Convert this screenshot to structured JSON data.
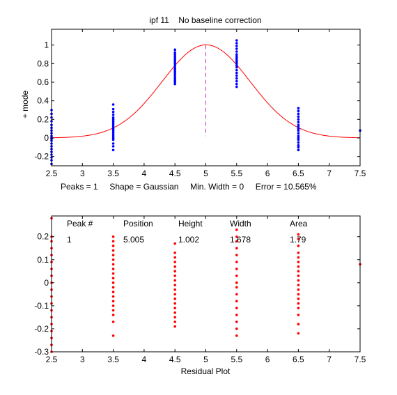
{
  "chart_data": [
    {
      "type": "scatter",
      "title": "ipf 11    No baseline correction",
      "ylabel": "+ mode",
      "xlabel": "",
      "xlim": [
        2.5,
        7.5
      ],
      "ylim": [
        -0.3,
        1.17
      ],
      "xticks": [
        "2.5",
        "3",
        "3.5",
        "4",
        "4.5",
        "5",
        "5.5",
        "6",
        "6.5",
        "7",
        "7.5"
      ],
      "yticks": [
        "-0.2",
        "0",
        "0.2",
        "0.4",
        "0.6",
        "0.8",
        "1"
      ],
      "grid": false,
      "stats_line": "Peaks = 1     Shape = Gaussian     Min. Width = 0     Error = 10.565%",
      "fit_curve": {
        "shape": "gaussian",
        "position": 5.005,
        "height": 1.002,
        "width": 1.678,
        "color": "#ff0000"
      },
      "peak_marker": {
        "x": 5.0,
        "y_from": 0.02,
        "y_to": 1.0,
        "color": "#cc33cc"
      },
      "point_color": "#0000ff",
      "series": [
        {
          "x": 2.5,
          "y": [
            -0.28,
            -0.24,
            -0.21,
            -0.18,
            -0.15,
            -0.12,
            -0.09,
            -0.06,
            -0.03,
            -0.01,
            0.0,
            0.02,
            0.05,
            0.08,
            0.11,
            0.14,
            0.18,
            0.22,
            0.26,
            0.3
          ]
        },
        {
          "x": 3.5,
          "y": [
            -0.13,
            -0.09,
            -0.06,
            -0.02,
            0.0,
            0.02,
            0.04,
            0.06,
            0.08,
            0.1,
            0.12,
            0.14,
            0.16,
            0.18,
            0.2,
            0.22,
            0.25,
            0.28,
            0.31,
            0.36
          ]
        },
        {
          "x": 4.5,
          "y": [
            0.58,
            0.6,
            0.62,
            0.64,
            0.66,
            0.68,
            0.7,
            0.72,
            0.74,
            0.76,
            0.78,
            0.8,
            0.82,
            0.84,
            0.86,
            0.88,
            0.9,
            0.92,
            0.95
          ]
        },
        {
          "x": 5.5,
          "y": [
            0.55,
            0.58,
            0.61,
            0.64,
            0.67,
            0.7,
            0.73,
            0.76,
            0.78,
            0.8,
            0.82,
            0.84,
            0.86,
            0.88,
            0.9,
            0.93,
            0.96,
            0.99,
            1.02,
            1.05
          ]
        },
        {
          "x": 6.5,
          "y": [
            -0.13,
            -0.1,
            -0.08,
            -0.05,
            -0.02,
            0.0,
            0.02,
            0.05,
            0.08,
            0.1,
            0.12,
            0.14,
            0.17,
            0.2,
            0.23,
            0.26,
            0.29,
            0.32
          ]
        },
        {
          "x": 7.5,
          "y": [
            0.08
          ]
        }
      ]
    },
    {
      "type": "scatter",
      "title": "",
      "xlabel": "Residual Plot",
      "ylabel": "",
      "xlim": [
        2.5,
        7.5
      ],
      "ylim": [
        -0.3,
        0.29
      ],
      "xticks": [
        "2.5",
        "3",
        "3.5",
        "4",
        "4.5",
        "5",
        "5.5",
        "6",
        "6.5",
        "7",
        "7.5"
      ],
      "yticks": [
        "-0.3",
        "-0.2",
        "-0.1",
        "0",
        "0.1",
        "0.2"
      ],
      "grid": false,
      "point_color": "#ff0000",
      "table": {
        "headers": [
          "Peak #",
          "Position",
          "Height",
          "Width",
          "Area"
        ],
        "rows": [
          [
            "1",
            "5.005",
            "1.002",
            "1.678",
            "1.79"
          ]
        ]
      },
      "series": [
        {
          "x": 2.5,
          "y": [
            -0.3,
            -0.27,
            -0.24,
            -0.21,
            -0.18,
            -0.15,
            -0.12,
            -0.09,
            -0.06,
            -0.03,
            0.0,
            0.03,
            0.06,
            0.09,
            0.12,
            0.15,
            0.18,
            0.2,
            0.28
          ]
        },
        {
          "x": 3.5,
          "y": [
            -0.23,
            -0.17,
            -0.14,
            -0.12,
            -0.1,
            -0.08,
            -0.06,
            -0.04,
            -0.02,
            0.0,
            0.02,
            0.04,
            0.06,
            0.08,
            0.1,
            0.12,
            0.14,
            0.16,
            0.18,
            0.2
          ]
        },
        {
          "x": 4.5,
          "y": [
            -0.19,
            -0.17,
            -0.15,
            -0.13,
            -0.11,
            -0.09,
            -0.07,
            -0.05,
            -0.03,
            -0.01,
            0.01,
            0.03,
            0.05,
            0.07,
            0.09,
            0.11,
            0.13,
            0.17
          ]
        },
        {
          "x": 5.5,
          "y": [
            -0.23,
            -0.2,
            -0.17,
            -0.14,
            -0.11,
            -0.08,
            -0.05,
            -0.02,
            0.0,
            0.03,
            0.06,
            0.09,
            0.12,
            0.15,
            0.18,
            0.2,
            0.23
          ]
        },
        {
          "x": 6.5,
          "y": [
            -0.22,
            -0.18,
            -0.14,
            -0.11,
            -0.09,
            -0.07,
            -0.05,
            -0.03,
            -0.01,
            0.01,
            0.03,
            0.05,
            0.07,
            0.09,
            0.11,
            0.13,
            0.16,
            0.19,
            0.21
          ]
        },
        {
          "x": 7.5,
          "y": [
            0.08
          ]
        }
      ]
    }
  ]
}
